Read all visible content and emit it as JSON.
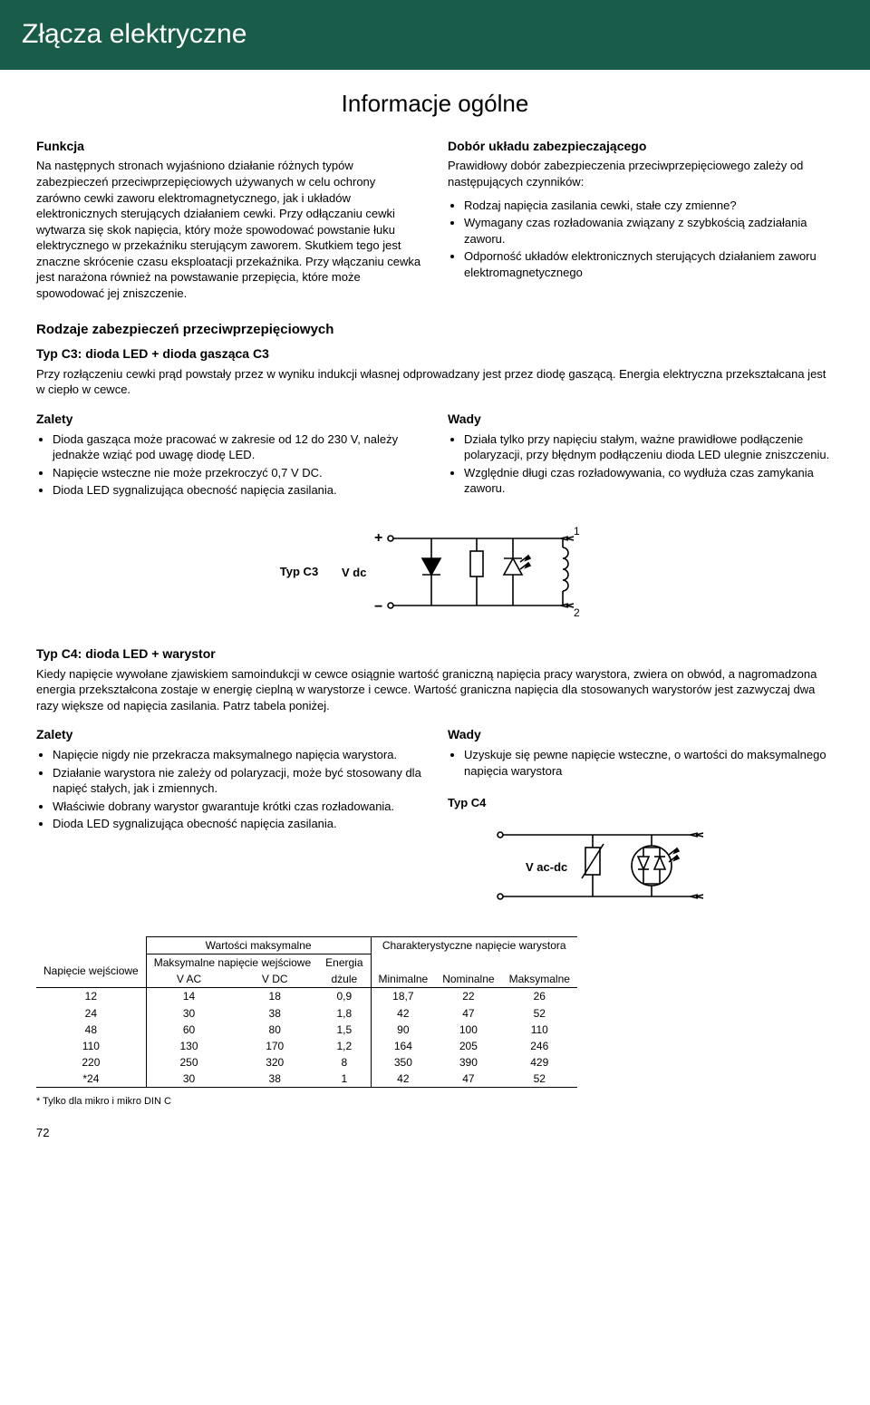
{
  "banner": "Złącza elektryczne",
  "header_center": "Informacje ogólne",
  "funkcja": {
    "title": "Funkcja",
    "body": "Na następnych stronach wyjaśniono działanie różnych typów zabezpieczeń przeciwprzepięciowych używanych w celu ochrony zarówno cewki zaworu elektromagnetycznego, jak i układów elektronicznych sterujących działaniem cewki. Przy odłączaniu cewki wytwarza się skok napięcia, który może spowodować powstanie łuku elektrycznego w przekaźniku sterującym zaworem. Skutkiem tego jest znaczne skrócenie czasu eksploatacji przekaźnika. Przy włączaniu cewka jest narażona również na powstawanie przepięcia, które może spowodować jej zniszczenie."
  },
  "dobor": {
    "title": "Dobór układu zabezpieczającego",
    "intro": "Prawidłowy dobór zabezpieczenia przeciwprzepięciowego zależy od następujących czynników:",
    "items": [
      "Rodzaj napięcia zasilania cewki, stałe czy zmienne?",
      "Wymagany czas rozładowania związany z szybkością zadziałania zaworu.",
      "Odporność układów elektronicznych sterujących działaniem zaworu elektromagnetycznego"
    ]
  },
  "rodzaje_title": "Rodzaje zabezpieczeń przeciwprzepięciowych",
  "c3": {
    "title": "Typ C3: dioda LED + dioda gasząca C3",
    "body": "Przy rozłączeniu cewki prąd powstały przez w wyniku indukcji własnej odprowadzany jest przez diodę gaszącą. Energia elektryczna przekształcana jest w ciepło w cewce.",
    "zalety_title": "Zalety",
    "zalety": [
      "Dioda gasząca może pracować w zakresie od 12 do 230 V, należy jednakże wziąć pod uwagę diodę LED.",
      "Napięcie wsteczne nie może przekroczyć 0,7 V DC.",
      "Dioda LED sygnalizująca obecność napięcia zasilania."
    ],
    "wady_title": "Wady",
    "wady": [
      "Działa tylko przy napięciu stałym, ważne prawidłowe podłączenie polaryzacji, przy błędnym podłączeniu dioda LED ulegnie zniszczeniu.",
      "Względnie długi czas rozładowywania, co wydłuża czas zamykania zaworu."
    ],
    "diag_label": "Typ C3",
    "diag_vdc": "V dc"
  },
  "c4": {
    "title": "Typ C4: dioda LED + warystor",
    "body": "Kiedy napięcie wywołane zjawiskiem samoindukcji w cewce osiągnie wartość graniczną napięcia pracy warystora, zwiera on obwód, a nagromadzona energia przekształcona zostaje w energię cieplną w warystorze i cewce. Wartość graniczna napięcia dla stosowanych warystorów jest zazwyczaj dwa razy większe od napięcia zasilania. Patrz tabela poniżej.",
    "zalety_title": "Zalety",
    "zalety": [
      "Napięcie nigdy nie przekracza maksymalnego napięcia warystora.",
      "Działanie warystora nie zależy od polaryzacji, może być stosowany dla napięć stałych, jak i zmiennych.",
      "Właściwie dobrany warystor gwarantuje krótki czas rozładowania.",
      "Dioda LED sygnalizująca obecność napięcia zasilania."
    ],
    "wady_title": "Wady",
    "wady": [
      "Uzyskuje się pewne napięcie wsteczne, o wartości do maksymalnego napięcia warystora"
    ],
    "diag_label": "Typ C4",
    "diag_vacdc": "V ac-dc"
  },
  "table": {
    "col_napiecie": "Napięcie wejściowe",
    "col_wart_max": "Wartości maksymalne",
    "col_maks_wej": "Maksymalne napięcie wejściowe",
    "col_vac": "V AC",
    "col_vdc": "V DC",
    "col_energia": "Energia",
    "col_dzule": "dżule",
    "col_char": "Charakterystyczne napięcie warystora",
    "col_min": "Minimalne",
    "col_nom": "Nominalne",
    "col_max": "Maksymalne",
    "rows": [
      [
        "12",
        "14",
        "18",
        "0,9",
        "18,7",
        "22",
        "26"
      ],
      [
        "24",
        "30",
        "38",
        "1,8",
        "42",
        "47",
        "52"
      ],
      [
        "48",
        "60",
        "80",
        "1,5",
        "90",
        "100",
        "110"
      ],
      [
        "110",
        "130",
        "170",
        "1,2",
        "164",
        "205",
        "246"
      ],
      [
        "220",
        "250",
        "320",
        "8",
        "350",
        "390",
        "429"
      ],
      [
        "*24",
        "30",
        "38",
        "1",
        "42",
        "47",
        "52"
      ]
    ]
  },
  "footnote": "* Tylko dla mikro i mikro DIN C",
  "pagenum": "72",
  "colors": {
    "banner_bg": "#1a5c4a",
    "banner_fg": "#ffffff",
    "text": "#000000",
    "line": "#000000"
  }
}
